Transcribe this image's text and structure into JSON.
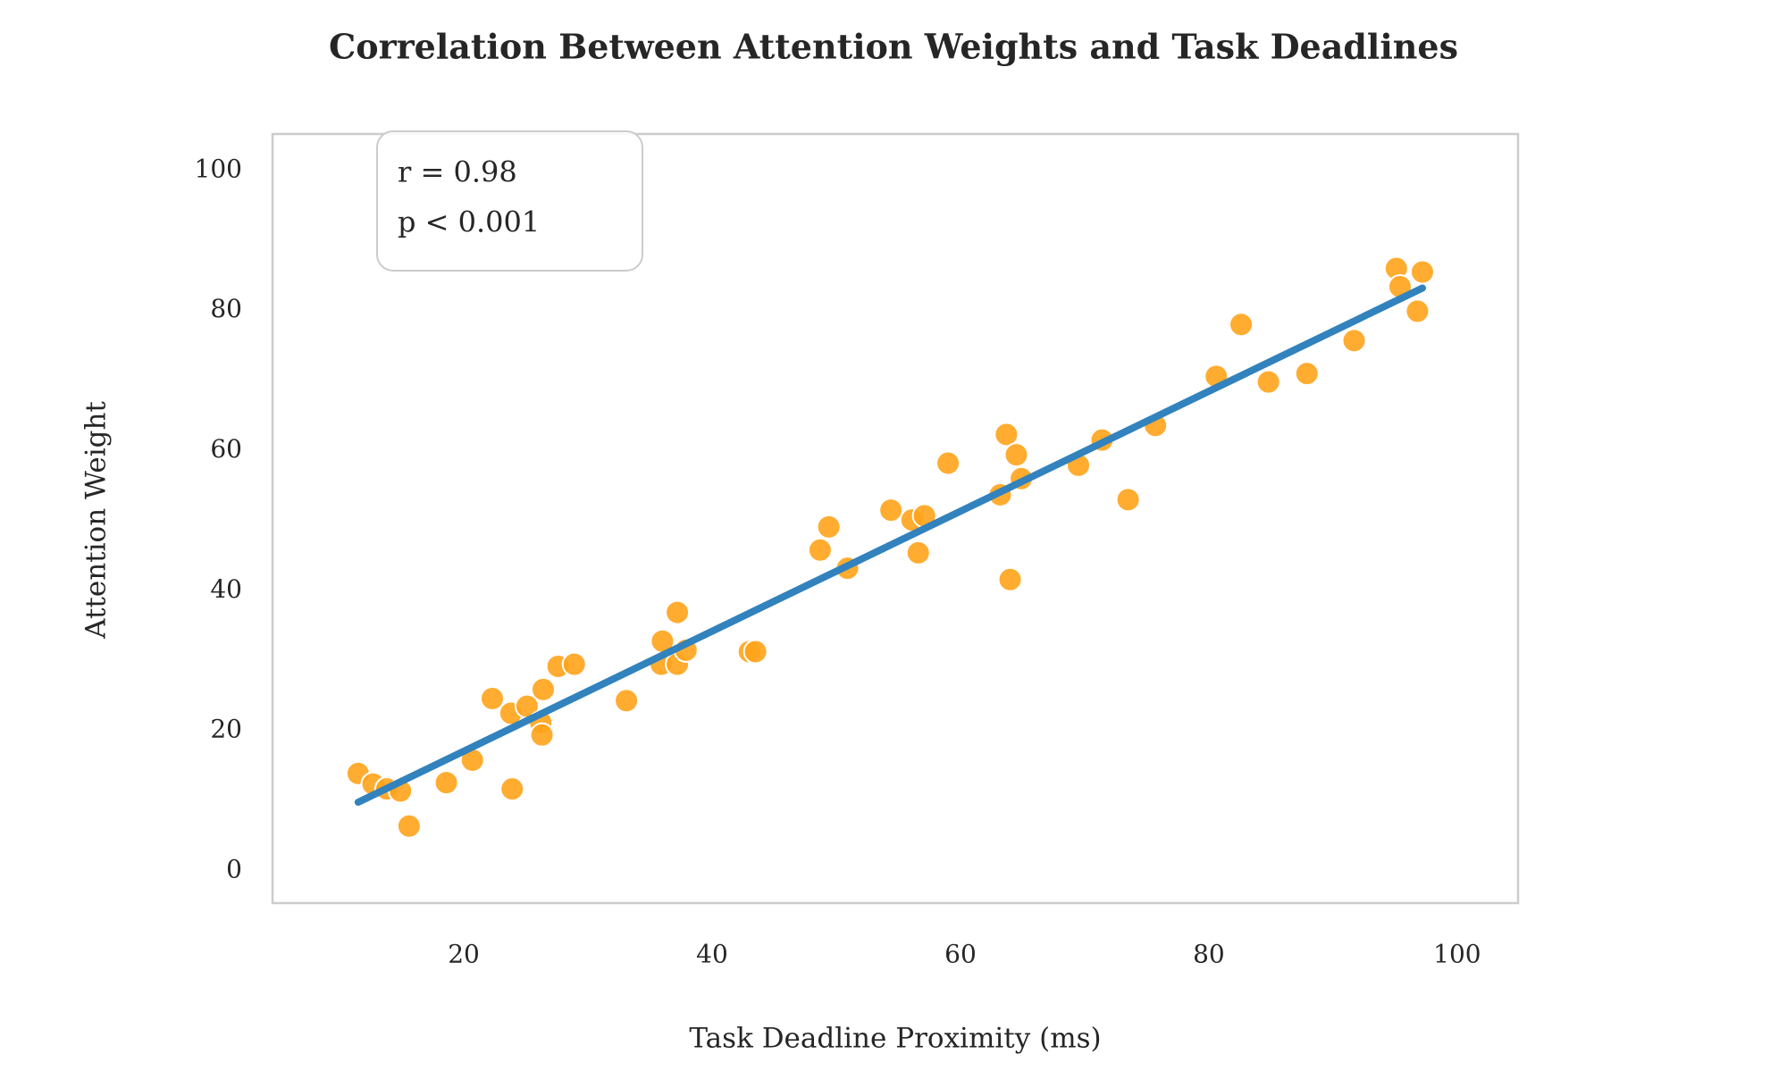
{
  "chart_data": {
    "type": "scatter",
    "title": "Correlation Between Attention Weights and Task Deadlines",
    "xlabel": "Task Deadline Proximity (ms)",
    "ylabel": "Attention Weight",
    "annotation": [
      "r = 0.98",
      "p < 0.001"
    ],
    "xlim": [
      4.6,
      104.9
    ],
    "ylim": [
      -4.6,
      105.2
    ],
    "xticks": [
      20,
      40,
      60,
      80,
      100
    ],
    "yticks": [
      0,
      20,
      40,
      60,
      80,
      100
    ],
    "grid": false,
    "series": [
      {
        "color": "#ffa31a",
        "x": [
          11.5,
          12.7,
          13.8,
          14.9,
          15.6,
          18.6,
          20.7,
          22.3,
          23.8,
          23.9,
          25.1,
          26.2,
          26.3,
          26.4,
          27.6,
          28.9,
          33.1,
          36.0,
          35.9,
          37.2,
          37.2,
          37.9,
          43.0,
          43.5,
          48.7,
          49.4,
          50.9,
          54.4,
          56.1,
          56.6,
          57.1,
          59.0,
          63.2,
          63.7,
          64.0,
          64.5,
          64.9,
          69.5,
          71.4,
          73.5,
          75.7,
          80.6,
          82.6,
          84.8,
          87.9,
          91.7,
          95.1,
          95.4,
          96.8,
          97.2
        ],
        "values": [
          13.9,
          12.4,
          11.7,
          11.4,
          6.4,
          12.6,
          15.8,
          24.6,
          22.5,
          11.7,
          23.5,
          21.2,
          19.4,
          25.9,
          29.2,
          29.5,
          24.3,
          32.8,
          29.5,
          36.9,
          29.5,
          31.5,
          31.3,
          31.3,
          45.8,
          49.1,
          43.2,
          51.5,
          50.1,
          45.4,
          50.7,
          58.2,
          53.7,
          62.3,
          41.6,
          59.4,
          56.0,
          57.9,
          61.5,
          53.0,
          63.6,
          70.6,
          78.0,
          69.8,
          71.0,
          75.7,
          86.0,
          83.4,
          79.9,
          85.5
        ]
      }
    ],
    "fit_line": {
      "color": "#3182bd",
      "x": [
        11.5,
        97.2
      ],
      "values": [
        9.8,
        83.2
      ]
    }
  }
}
